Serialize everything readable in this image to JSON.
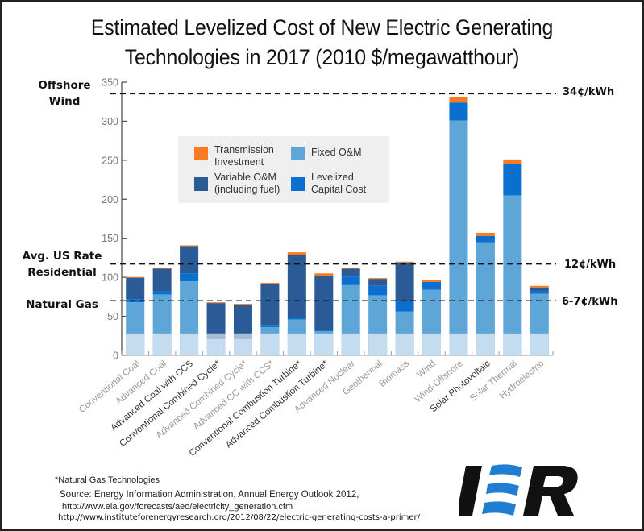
{
  "chart_data": {
    "type": "bar",
    "stacked": true,
    "title": "Estimated Levelized Cost of New Electric Generating Technologies in 2017 (2010 $/megawatthour)",
    "title_lines": [
      "Estimated Levelized Cost of New Electric Generating",
      "Technologies in 2017 (2010 $/megawatthour)"
    ],
    "xlabel": "",
    "ylabel": "",
    "ylim": [
      0,
      350
    ],
    "yticks": [
      0,
      50,
      100,
      150,
      200,
      250,
      300,
      350
    ],
    "grid": false,
    "legend_position": "upper-left-center",
    "categories": [
      "Conventional Coal",
      "Advanced Coal",
      "Advanced Coal with CCS",
      "Conventional Combined Cycle*",
      "Advanced Combined Cycle*",
      "Advanced CC with CCS*",
      "Conventional Combustion Turbine*",
      "Advanced Combustion Turbine*",
      "Advanced Nuclear",
      "Geothermal",
      "Biomass",
      "Wind",
      "Wind-Offshore",
      "Solar Photovoltaic",
      "Solar Thermal",
      "Hydroelectric"
    ],
    "series": [
      {
        "name": "Fixed O&M",
        "color": "#5ea6d8",
        "values": [
          68,
          78,
          95,
          28,
          28,
          36,
          46,
          31,
          90,
          77,
          56,
          84,
          301,
          145,
          205,
          79
        ]
      },
      {
        "name": "Levelized Capital Cost",
        "color": "#0a6fce",
        "values": [
          4,
          4,
          10,
          0,
          0,
          3,
          2,
          2,
          11,
          12,
          14,
          10,
          23,
          8,
          40,
          3
        ]
      },
      {
        "name": "Variable O&M (including fuel)",
        "color": "#2b5b96",
        "values": [
          27.5,
          29,
          35,
          39,
          37,
          53,
          81,
          69,
          10,
          9,
          49,
          0,
          0,
          0,
          0,
          5
        ]
      },
      {
        "name": "Transmission Investment",
        "color": "#f97a1f",
        "values": [
          1,
          1,
          1,
          1,
          1,
          1,
          3,
          3,
          1,
          1,
          1,
          3,
          7,
          4,
          6,
          2
        ]
      }
    ],
    "totals": [
      100.5,
      112,
      141,
      68,
      66,
      93,
      132,
      105,
      112,
      99,
      120,
      97,
      331,
      157,
      251,
      89
    ],
    "annotations": [
      {
        "label": "Offshore Wind",
        "value": 335,
        "right_label": "34¢/kWh"
      },
      {
        "label": "Avg. US Rate Residential",
        "value": 117,
        "right_label": "12¢/kWh"
      },
      {
        "label": "Natural Gas",
        "value": 70,
        "right_label": "6-7¢/kWh"
      }
    ],
    "footnote": "*Natural Gas Technologies"
  },
  "left_labels": {
    "offshore": [
      "Offshore",
      "Wind"
    ],
    "residential": [
      "Avg. US Rate",
      "Residential"
    ],
    "gas": [
      "Natural Gas"
    ]
  },
  "legend": [
    {
      "label": "Transmission\nInvestment",
      "color": "#f97a1f"
    },
    {
      "label": "Fixed O&M",
      "color": "#5ea6d8"
    },
    {
      "label": "Variable O&M\n(including fuel)",
      "color": "#2b5b96"
    },
    {
      "label": "Levelized\nCapital Cost",
      "color": "#0a6fce"
    }
  ],
  "footer": {
    "note": "*Natural Gas Technologies",
    "source": "Source: Energy Information Administration, Annual Energy Outlook 2012,",
    "source_url": "http://www.eia.gov/forecasts/aeo/electricity_generation.cfm",
    "article_url": "http://www.instituteforenergyresearch.org/2012/08/22/electric-generating-costs-a-primer/"
  },
  "logo": {
    "text": "IER",
    "brand_color": "#1f7ed0",
    "text_color": "#111111"
  }
}
